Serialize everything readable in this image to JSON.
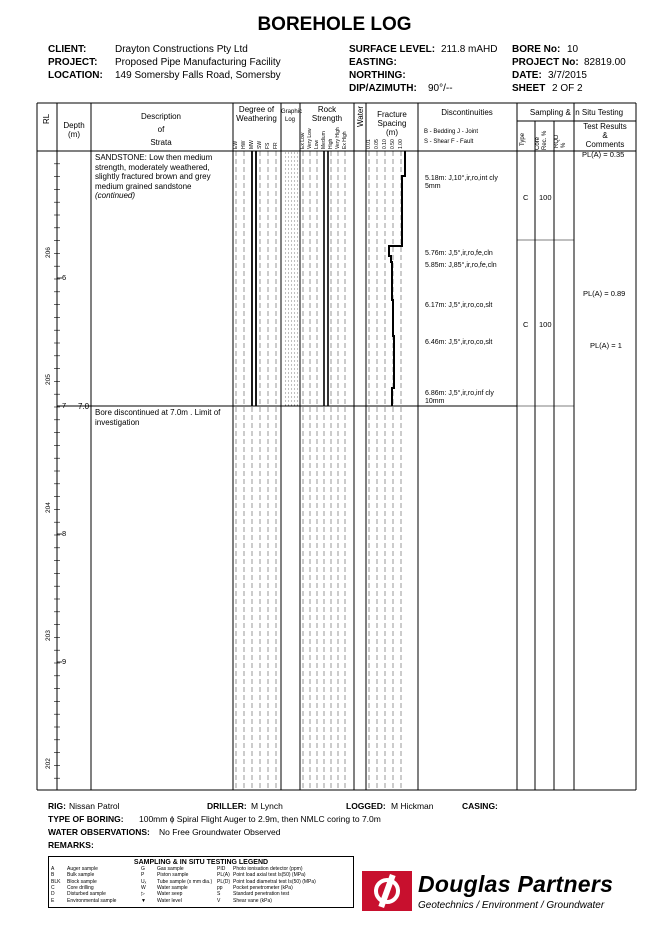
{
  "title": "BOREHOLE LOG",
  "header": {
    "client_label": "CLIENT:",
    "client": "Drayton Constructions Pty Ltd",
    "project_label": "PROJECT:",
    "project": "Proposed Pipe Manufacturing Facility",
    "location_label": "LOCATION:",
    "location": "149 Somersby Falls Road, Somersby",
    "surface_label": "SURFACE LEVEL:",
    "surface": "211.8 mAHD",
    "easting_label": "EASTING:",
    "northing_label": "NORTHING:",
    "dip_label": "DIP/AZIMUTH:",
    "dip": "90°/--",
    "bore_label": "BORE No:",
    "bore": "10",
    "projno_label": "PROJECT No:",
    "projno": "82819.00",
    "date_label": "DATE:",
    "date": "3/7/2015",
    "sheet_label": "SHEET",
    "sheet": "2  OF  2"
  },
  "columns": {
    "rl": "RL",
    "depth": "Depth",
    "depth_unit": "(m)",
    "desc1": "Description",
    "desc2": "of",
    "desc3": "Strata",
    "weathering1": "Degree of",
    "weathering2": "Weathering",
    "graphic1": "Graphic",
    "graphic2": "Log",
    "rock1": "Rock",
    "rock2": "Strength",
    "water": "Water",
    "fracture1": "Fracture",
    "fracture2": "Spacing",
    "fracture3": "(m)",
    "disc": "Discontinuities",
    "disc_key1": "B - Bedding   J - Joint",
    "disc_key2": "S - Shear     F - Fault",
    "sampling": "Sampling & In Situ Testing",
    "type": "Type",
    "core1": "Core",
    "core2": "Rec. %",
    "rqd1": "RQD",
    "rqd2": "%",
    "tr1": "Test Results",
    "tr2": "&",
    "tr3": "Comments"
  },
  "weathering_codes": [
    "EW",
    "HW",
    "MW",
    "SW",
    "FS",
    "FR"
  ],
  "strength_codes": [
    "Ex Low",
    "Very Low",
    "Low",
    "Medium",
    "High",
    "Very High",
    "Ex High"
  ],
  "spacing_codes": [
    "0.01",
    "0.05",
    "0.10",
    "0.50",
    "1.00"
  ],
  "rl_labels": [
    "206",
    "205",
    "204",
    "203",
    "202"
  ],
  "depth_labels": [
    "6",
    "7",
    "8",
    "9"
  ],
  "strata": {
    "desc": [
      "SANDSTONE:  Low then medium",
      "strength, moderately weathered,",
      "slightly fractured brown and grey",
      "medium grained sandstone"
    ],
    "cont": "(continued)",
    "end_depth": "7.0",
    "end": [
      "Bore discontinued at 7.0m .  Limit of",
      "investigation"
    ]
  },
  "discontinuities": [
    [
      "5.18m: J,10°,ir,ro,int cly",
      "5mm"
    ],
    [
      "5.76m: J,5°,ir,ro,fe,cln"
    ],
    [
      "5.85m: J,85°,ir,ro,fe,cln"
    ],
    [
      "6.17m: J,5°,ir,ro,co,slt"
    ],
    [
      "6.46m: J,5°,ir,ro,co,slt"
    ],
    [
      "6.86m: J,5°,ir,ro,inf cly",
      "10mm"
    ]
  ],
  "samples": [
    {
      "type": "C",
      "rec": "100"
    },
    {
      "type": "C",
      "rec": "100"
    }
  ],
  "tests": [
    "PL(A) = 0.35",
    "PL(A) = 0.89",
    "PL(A) = 1"
  ],
  "footer": {
    "rig_label": "RIG:",
    "rig": "Nissan Patrol",
    "driller_label": "DRILLER:",
    "driller": "M Lynch",
    "logged_label": "LOGGED:",
    "logged": "M Hickman",
    "casing_label": "CASING:",
    "boring_label": "TYPE OF BORING:",
    "boring": "100mm ɸ Spiral Flight Auger to 2.9m, then NMLC coring to 7.0m",
    "water_label": "WATER OBSERVATIONS:",
    "water": "No Free Groundwater Observed",
    "remarks_label": "REMARKS:"
  },
  "legend": {
    "title": "SAMPLING & IN SITU TESTING LEGEND",
    "col1": [
      [
        "A",
        "Auger sample"
      ],
      [
        "B",
        "Bulk sample"
      ],
      [
        "BLK",
        "Block sample"
      ],
      [
        "C",
        "Core drilling"
      ],
      [
        "D",
        "Disturbed sample"
      ],
      [
        "E",
        "Environmental sample"
      ]
    ],
    "col2": [
      [
        "G",
        "Gas sample"
      ],
      [
        "P",
        "Piston sample"
      ],
      [
        "Uₓ",
        "Tube sample (x mm dia.)"
      ],
      [
        "W",
        "Water sample"
      ],
      [
        "▷",
        "Water seep"
      ],
      [
        "▼",
        "Water level"
      ]
    ],
    "col3": [
      [
        "PID",
        "Photo ionisation detector (ppm)"
      ],
      [
        "PL(A)",
        "Point load axial test Is(50) (MPa)"
      ],
      [
        "PL(D)",
        "Point load diametral test Is(50) (MPa)"
      ],
      [
        "pp",
        "Pocket penetrometer (kPa)"
      ],
      [
        "S",
        "Standard penetration test"
      ],
      [
        "V",
        "Shear vane (kPa)"
      ]
    ]
  },
  "brand": {
    "name": "Douglas Partners",
    "tagline": "Geotechnics  /  Environment  /  Groundwater",
    "color": "#c8102e"
  }
}
